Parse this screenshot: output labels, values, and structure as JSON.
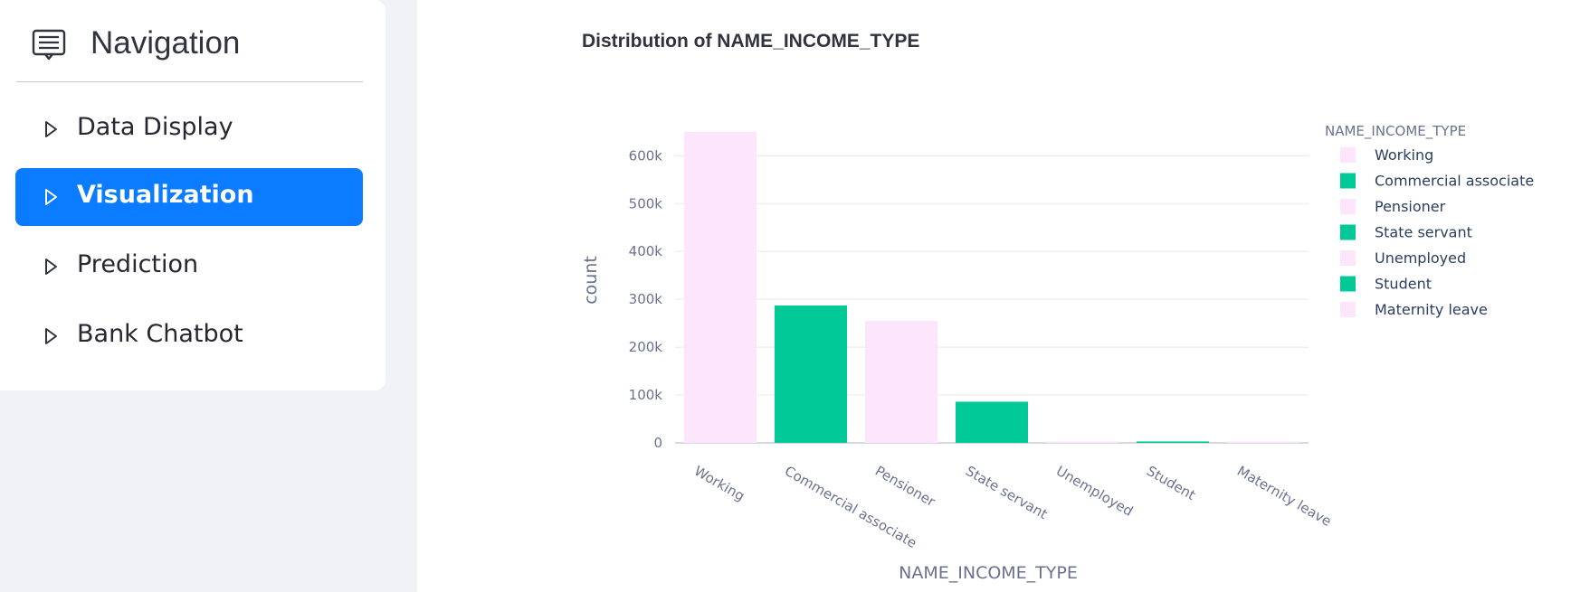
{
  "sidebar": {
    "title": "Navigation",
    "title_icon": "message-list-icon",
    "items": [
      {
        "label": "Data Display",
        "active": false,
        "icon": "caret-right-icon"
      },
      {
        "label": "Visualization",
        "active": true,
        "icon": "caret-right-icon"
      },
      {
        "label": "Prediction",
        "active": false,
        "icon": "caret-right-icon"
      },
      {
        "label": "Bank Chatbot",
        "active": false,
        "icon": "caret-right-icon"
      }
    ],
    "active_color": "#0b7cff"
  },
  "chart_data": {
    "type": "bar",
    "title": "Distribution of NAME_INCOME_TYPE",
    "xlabel": "NAME_INCOME_TYPE",
    "ylabel": "count",
    "ylim": [
      0,
      680000
    ],
    "grid": true,
    "y_ticks": [
      {
        "value": 0,
        "label": "0"
      },
      {
        "value": 100000,
        "label": "100k"
      },
      {
        "value": 200000,
        "label": "200k"
      },
      {
        "value": 300000,
        "label": "300k"
      },
      {
        "value": 400000,
        "label": "400k"
      },
      {
        "value": 500000,
        "label": "500k"
      },
      {
        "value": 600000,
        "label": "600k"
      }
    ],
    "categories": [
      "Working",
      "Commercial associate",
      "Pensioner",
      "State servant",
      "Unemployed",
      "Student",
      "Maternity leave"
    ],
    "values": [
      650000,
      287000,
      255000,
      86000,
      1500,
      3000,
      1000
    ],
    "colors": [
      "#fde6fb",
      "#00c896",
      "#fde6fb",
      "#00c896",
      "#fde6fb",
      "#00c896",
      "#fde6fb"
    ],
    "legend": {
      "title": "NAME_INCOME_TYPE",
      "position": "right",
      "entries": [
        "Working",
        "Commercial associate",
        "Pensioner",
        "State servant",
        "Unemployed",
        "Student",
        "Maternity leave"
      ]
    }
  }
}
